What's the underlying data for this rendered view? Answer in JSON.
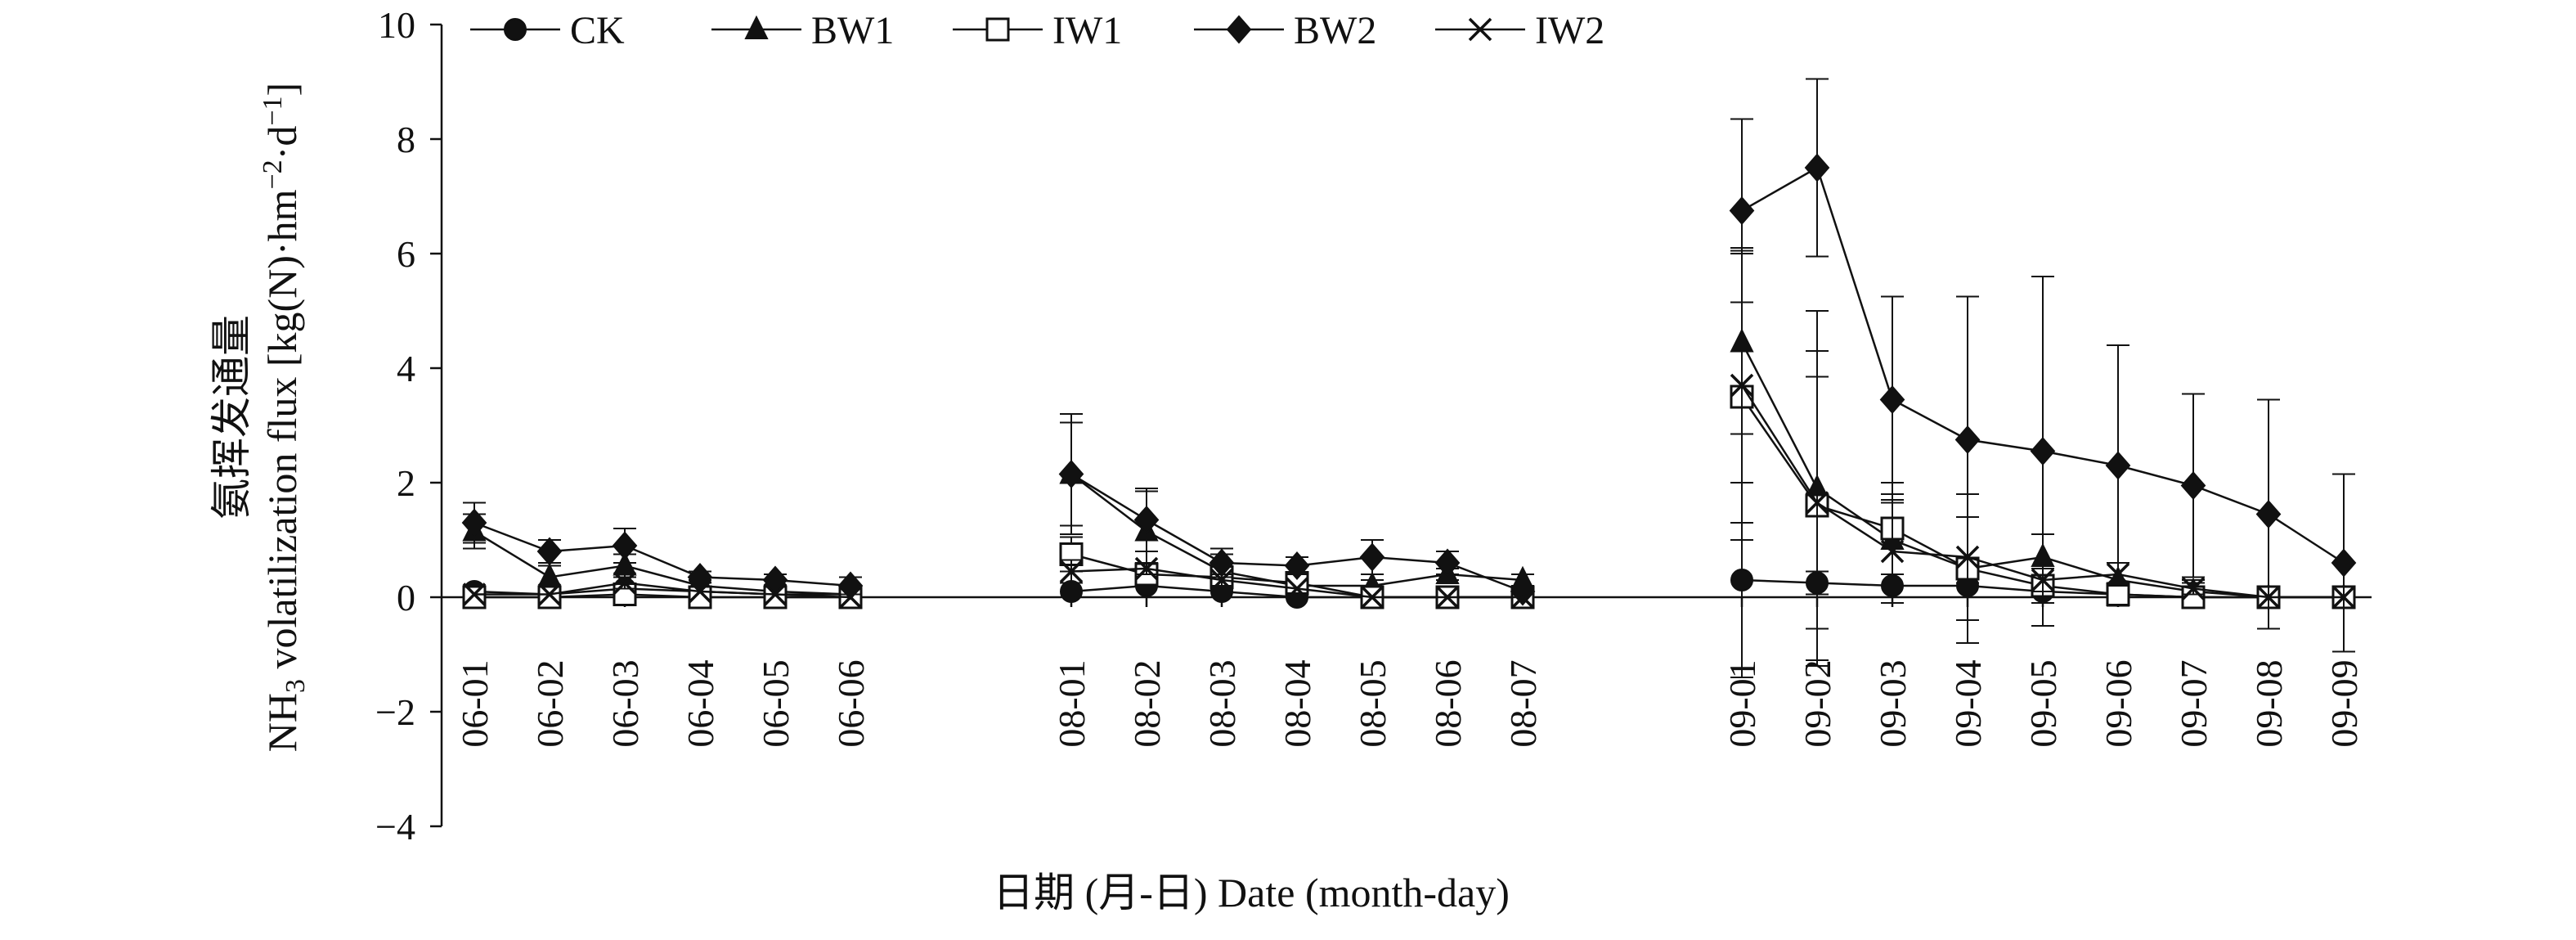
{
  "chart_data": {
    "type": "line",
    "title": "",
    "xlabel": "日期 (月-日) Date (month-day)",
    "ylabel_cn": "氨挥发通量",
    "ylabel_prefix": "NH",
    "ylabel_sub": "3",
    "ylabel_mid": " volatilization flux [kg(N)·hm",
    "ylabel_sup1": "−2",
    "ylabel_mid2": "·d",
    "ylabel_sup2": "−1",
    "ylabel_end": "]",
    "ylim": [
      -4,
      10
    ],
    "yticks": [
      -4,
      -2,
      0,
      2,
      4,
      6,
      8,
      10
    ],
    "ytick_labels": [
      "−4",
      "−2",
      "0",
      "2",
      "4",
      "6",
      "8",
      "10"
    ],
    "grid": false,
    "legend_position": "top",
    "groups": [
      {
        "dates": [
          "06-01",
          "06-02",
          "06-03",
          "06-04",
          "06-05",
          "06-06"
        ]
      },
      {
        "dates": [
          "08-01",
          "08-02",
          "08-03",
          "08-04",
          "08-05",
          "08-06",
          "08-07"
        ]
      },
      {
        "dates": [
          "09-01",
          "09-02",
          "09-03",
          "09-04",
          "09-05",
          "09-06",
          "09-07",
          "09-08",
          "09-09"
        ]
      }
    ],
    "series": [
      {
        "name": "CK",
        "marker": "circle",
        "values": [
          [
            0.1,
            0.05,
            0.15,
            0.1,
            0.05,
            0.05
          ],
          [
            0.1,
            0.2,
            0.1,
            0.0,
            0.0,
            0.0,
            0.0
          ],
          [
            0.3,
            0.25,
            0.2,
            0.2,
            0.1,
            0.05,
            0.0,
            0.0,
            0.0
          ]
        ],
        "errors": [
          [
            0.05,
            0.05,
            0.05,
            0.05,
            0.05,
            0.05
          ],
          [
            0.05,
            0.05,
            0.05,
            0.05,
            0.05,
            0.05,
            0.05
          ],
          [
            1.7,
            0.2,
            0.2,
            0.2,
            0.1,
            0.05,
            0.05,
            0.05,
            0.05
          ]
        ]
      },
      {
        "name": "BW1",
        "marker": "triangle",
        "values": [
          [
            1.15,
            0.35,
            0.55,
            0.2,
            0.1,
            0.05
          ],
          [
            2.15,
            1.15,
            0.45,
            0.2,
            0.2,
            0.4,
            0.3
          ],
          [
            4.45,
            1.9,
            1.0,
            0.5,
            0.7,
            0.3,
            0.1,
            0.0,
            0.0
          ]
        ],
        "errors": [
          [
            0.3,
            0.2,
            0.2,
            0.1,
            0.05,
            0.05
          ],
          [
            0.9,
            0.7,
            0.3,
            0.1,
            0.1,
            0.1,
            0.1
          ],
          [
            1.6,
            3.1,
            0.8,
            0.9,
            0.4,
            0.3,
            0.2,
            0.05,
            0.05
          ]
        ]
      },
      {
        "name": "IW1",
        "marker": "square-open",
        "values": [
          [
            0.0,
            0.0,
            0.05,
            0.0,
            0.0,
            0.0
          ],
          [
            0.75,
            0.4,
            0.35,
            0.25,
            0.0,
            0.0,
            0.0
          ],
          [
            3.5,
            1.6,
            1.2,
            0.5,
            0.2,
            0.05,
            0.0,
            0.0,
            0.0
          ]
        ],
        "errors": [
          [
            0.05,
            0.05,
            0.05,
            0.05,
            0.05,
            0.05
          ],
          [
            0.3,
            0.2,
            0.1,
            0.1,
            0.05,
            0.05,
            0.05
          ],
          [
            2.5,
            2.7,
            0.8,
            1.3,
            0.3,
            0.2,
            0.1,
            0.05,
            0.05
          ]
        ]
      },
      {
        "name": "BW2",
        "marker": "diamond",
        "values": [
          [
            1.3,
            0.8,
            0.9,
            0.35,
            0.3,
            0.2
          ],
          [
            2.15,
            1.35,
            0.6,
            0.55,
            0.7,
            0.6,
            0.1
          ],
          [
            6.75,
            7.5,
            3.45,
            2.75,
            2.55,
            2.3,
            1.95,
            1.45,
            0.6
          ]
        ],
        "errors": [
          [
            0.35,
            0.2,
            0.3,
            0.1,
            0.1,
            0.15
          ],
          [
            1.05,
            0.55,
            0.25,
            0.15,
            0.3,
            0.2,
            0.05
          ],
          [
            1.6,
            1.55,
            1.8,
            2.5,
            3.05,
            2.1,
            1.6,
            2.0,
            1.55
          ]
        ]
      },
      {
        "name": "IW2",
        "marker": "x",
        "values": [
          [
            0.05,
            0.05,
            0.25,
            0.1,
            0.05,
            0.0
          ],
          [
            0.45,
            0.5,
            0.3,
            0.15,
            0.0,
            0.0,
            0.0
          ],
          [
            3.7,
            1.65,
            0.8,
            0.7,
            0.3,
            0.4,
            0.15,
            0.0,
            0.0
          ]
        ],
        "errors": [
          [
            0.05,
            0.05,
            0.1,
            0.05,
            0.05,
            0.05
          ],
          [
            0.2,
            0.1,
            0.1,
            0.05,
            0.05,
            0.05,
            0.05
          ],
          [
            2.4,
            2.2,
            0.9,
            1.1,
            0.2,
            0.2,
            0.1,
            0.05,
            0.05
          ]
        ]
      }
    ]
  }
}
